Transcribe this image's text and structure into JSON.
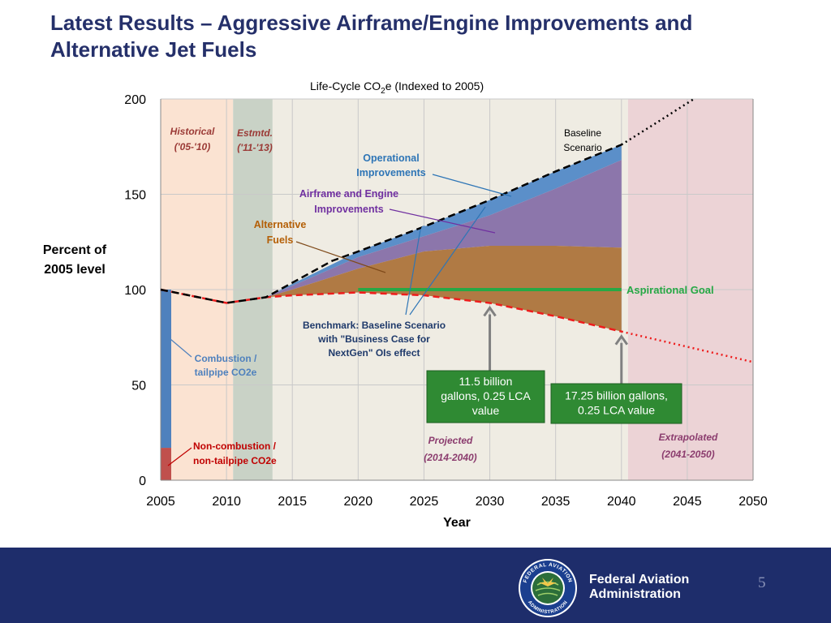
{
  "slide": {
    "title_line1": "Latest Results – Aggressive Airframe/Engine Improvements and",
    "title_line2": "Alternative Jet Fuels",
    "page_number": "5"
  },
  "footer": {
    "org_line1": "Federal Aviation",
    "org_line2": "Administration",
    "seal_top_text": "FEDERAL AVIATION",
    "seal_bottom_text": "ADMINISTRATION"
  },
  "colors": {
    "historical_bg": "#fbe3d2",
    "estimated_bg": "#c9d2c6",
    "projected_bg": "#efece3",
    "extrapolated_bg": "#ecd3d6",
    "combustion": "#4f81bd",
    "non_combustion": "#c0504d",
    "operational": "#5b8fc9",
    "airframe_engine": "#8c76ab",
    "alternative_fuels": "#b07a44",
    "benchmark_line": "#ee1c1c",
    "baseline_line": "#000000",
    "goal_line": "#27a845",
    "grid": "#c9c9c9",
    "arrow": "#808080"
  },
  "chart_data": {
    "type": "area",
    "title_prefix": "Life-Cycle CO",
    "title_subscript": "2",
    "title_suffix": "e (Indexed to 2005)",
    "xlabel": "Year",
    "ylabel_line1": "Percent of",
    "ylabel_line2": "2005 level",
    "xlim": [
      2005,
      2050
    ],
    "ylim": [
      0,
      200
    ],
    "xticks": [
      2005,
      2010,
      2015,
      2020,
      2025,
      2030,
      2035,
      2040,
      2045,
      2050
    ],
    "yticks": [
      0,
      50,
      100,
      150,
      200
    ],
    "periods": [
      {
        "name": "Historical",
        "range": [
          2005,
          2010.5
        ],
        "color_key": "historical_bg",
        "label_line1": "Historical",
        "label_line2": "('05-'10)"
      },
      {
        "name": "Estimated",
        "range": [
          2010.5,
          2013.5
        ],
        "color_key": "estimated_bg",
        "label_line1": "Estmtd.",
        "label_line2": "('11-'13)"
      },
      {
        "name": "Projected",
        "range": [
          2013.5,
          2040.5
        ],
        "color_key": "projected_bg",
        "label_line1": "Projected",
        "label_line2": "(2014-2040)"
      },
      {
        "name": "Extrapolated",
        "range": [
          2040.5,
          2050.5
        ],
        "color_key": "extrapolated_bg",
        "label_line1": "Extrapolated",
        "label_line2": "(2041-2050)"
      }
    ],
    "baseline_scenario": {
      "name": "Baseline Scenario",
      "label_line1": "Baseline",
      "label_line2": "Scenario",
      "x": [
        2005,
        2010,
        2013,
        2018,
        2020,
        2025,
        2030,
        2035,
        2040
      ],
      "y": [
        100,
        93,
        96,
        115,
        120,
        133,
        147,
        162,
        176
      ],
      "extrapolated_x": [
        2040,
        2043,
        2045.5
      ],
      "extrapolated_y": [
        176,
        189,
        200
      ]
    },
    "benchmark_scenario": {
      "name": "Benchmark: Baseline Scenario with \"Business Case for NextGen\" OIs effect",
      "label_lines": [
        "Benchmark: Baseline Scenario",
        "with \"Business Case for",
        "NextGen\" OIs effect"
      ],
      "x": [
        2005,
        2010,
        2013,
        2015,
        2020,
        2025,
        2030,
        2035,
        2040
      ],
      "y": [
        100,
        93,
        96,
        97,
        98.5,
        97,
        93,
        86,
        78
      ],
      "extrapolated_x": [
        2040,
        2050
      ],
      "extrapolated_y": [
        78,
        62
      ]
    },
    "series": [
      {
        "name": "Operational Improvements",
        "label_line1": "Operational",
        "label_line2": "Improvements",
        "color_key": "operational",
        "x": [
          2013,
          2015,
          2020,
          2025,
          2030,
          2035,
          2040
        ],
        "upper": [
          96,
          103,
          120,
          133,
          147,
          162,
          176
        ],
        "lower": [
          96,
          102,
          117,
          128,
          139,
          153,
          168
        ]
      },
      {
        "name": "Airframe and Engine Improvements",
        "label_line1": "Airframe and Engine",
        "label_line2": "Improvements",
        "color_key": "airframe_engine",
        "x": [
          2013,
          2015,
          2020,
          2025,
          2030,
          2035,
          2040
        ],
        "upper": [
          96,
          102,
          117,
          128,
          139,
          153,
          168
        ],
        "lower": [
          96,
          100,
          111,
          120,
          123,
          123,
          122
        ]
      },
      {
        "name": "Alternative Fuels",
        "label_line1": "Alternative",
        "label_line2": "Fuels",
        "color_key": "alternative_fuels",
        "x": [
          2013,
          2015,
          2020,
          2025,
          2030,
          2035,
          2040
        ],
        "upper": [
          96,
          100,
          111,
          120,
          123,
          123,
          122
        ],
        "lower": [
          96,
          97,
          98.5,
          97,
          93,
          86,
          78
        ]
      }
    ],
    "aspirational_goal": {
      "label": "Aspirational Goal",
      "x_start": 2020,
      "x_end": 2040,
      "value": 100
    },
    "stacked_bar_2005": {
      "x": 2005,
      "segments": [
        {
          "name": "Non-combustion / non-tailpipe CO2e",
          "label_line1": "Non-combustion /",
          "label_line2": "non-tailpipe CO2e",
          "value": 17,
          "color_key": "non_combustion"
        },
        {
          "name": "Combustion / tailpipe CO2e",
          "label_line1": "Combustion  /",
          "label_line2": "tailpipe CO2e",
          "value": 83,
          "color_key": "combustion"
        }
      ]
    },
    "callouts": [
      {
        "name": "11.5 billion gallons, 0.25 LCA value",
        "lines": [
          "11.5 billion",
          "gallons, 0.25 LCA",
          "value"
        ],
        "x": 2030,
        "target_y": 93
      },
      {
        "name": "17.25 billion gallons, 0.25 LCA value",
        "lines": [
          "17.25 billion gallons,",
          "0.25 LCA value"
        ],
        "x": 2040,
        "target_y": 78
      }
    ]
  }
}
